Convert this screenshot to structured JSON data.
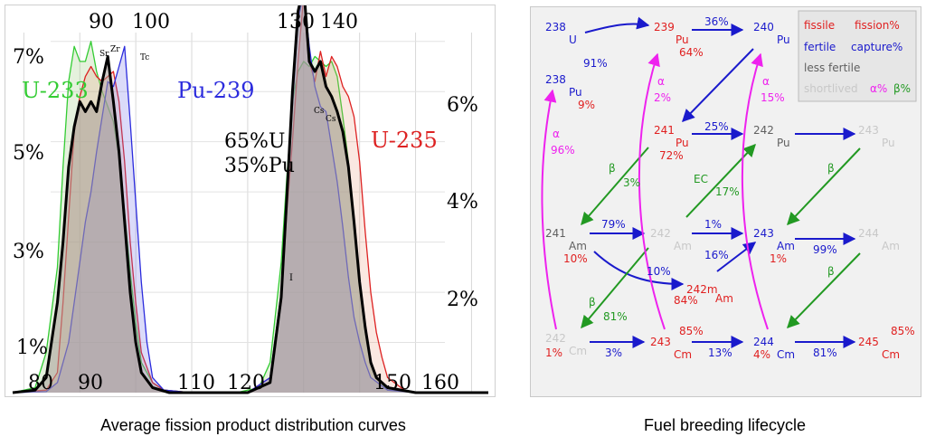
{
  "captions": {
    "left": "Average fission product distribution curves",
    "right": "Fuel breeding lifecycle"
  },
  "colors": {
    "u233": "#33cc33",
    "u235": "#dd2222",
    "pu239": "#2b2bdd",
    "avg": "#000000",
    "fill": "#a89c98",
    "fissile": "#e02020",
    "fertile": "#1a1acc",
    "less_fertile": "#606060",
    "shortlived": "#c8c8c8",
    "alpha": "#ee22ee",
    "beta": "#229922"
  },
  "chart_data": {
    "type": "area",
    "top_ticks": [
      "90",
      "100",
      "130",
      "140"
    ],
    "bottom_ticks": [
      "80",
      "90",
      "110",
      "120",
      "150",
      "160"
    ],
    "left_ticks": [
      "7%",
      "5%",
      "3%",
      "1%"
    ],
    "right_ticks": [
      "6%",
      "4%",
      "2%"
    ],
    "series_labels": [
      "U-233",
      "Pu-239",
      "U-235"
    ],
    "mix_label": [
      "65%U",
      "35%Pu"
    ],
    "element_labels": [
      "Sr",
      "Zr",
      "Tc",
      "Cs",
      "Cs",
      "I"
    ],
    "xlim": [
      78,
      163
    ],
    "ylim": [
      0,
      7.5
    ],
    "series": [
      {
        "name": "U-233",
        "points": [
          [
            78,
            0
          ],
          [
            82,
            0.1
          ],
          [
            84,
            0.8
          ],
          [
            86,
            2.5
          ],
          [
            87,
            4.5
          ],
          [
            88,
            6.2
          ],
          [
            89,
            6.9
          ],
          [
            90,
            6.6
          ],
          [
            91,
            6.6
          ],
          [
            92,
            7.0
          ],
          [
            93,
            6.4
          ],
          [
            94,
            6.0
          ],
          [
            95,
            5.7
          ],
          [
            96,
            5.4
          ],
          [
            97,
            4.7
          ],
          [
            98,
            3.6
          ],
          [
            99,
            2.4
          ],
          [
            100,
            1.4
          ],
          [
            101,
            0.6
          ],
          [
            103,
            0.2
          ],
          [
            105,
            0.05
          ],
          [
            110,
            0
          ],
          [
            118,
            0
          ],
          [
            122,
            0.1
          ],
          [
            124,
            0.6
          ],
          [
            126,
            2.6
          ],
          [
            127,
            4.3
          ],
          [
            128,
            5.8
          ],
          [
            129,
            6.4
          ],
          [
            130,
            6.6
          ],
          [
            131,
            6.5
          ],
          [
            132,
            6.7
          ],
          [
            133,
            6.6
          ],
          [
            134,
            6.5
          ],
          [
            135,
            6.6
          ],
          [
            136,
            6.3
          ],
          [
            137,
            5.5
          ],
          [
            138,
            4.6
          ],
          [
            139,
            3.3
          ],
          [
            140,
            2.1
          ],
          [
            141,
            1.2
          ],
          [
            142,
            0.6
          ],
          [
            143,
            0.3
          ],
          [
            145,
            0.05
          ],
          [
            150,
            0
          ],
          [
            163,
            0
          ]
        ]
      },
      {
        "name": "U-235",
        "points": [
          [
            78,
            0
          ],
          [
            84,
            0.05
          ],
          [
            86,
            0.4
          ],
          [
            87,
            1.8
          ],
          [
            88,
            3.5
          ],
          [
            89,
            5.2
          ],
          [
            90,
            5.9
          ],
          [
            91,
            6.3
          ],
          [
            92,
            6.5
          ],
          [
            93,
            6.3
          ],
          [
            94,
            6.2
          ],
          [
            95,
            6.3
          ],
          [
            96,
            6.4
          ],
          [
            97,
            5.8
          ],
          [
            98,
            4.6
          ],
          [
            99,
            3.0
          ],
          [
            100,
            1.8
          ],
          [
            101,
            0.8
          ],
          [
            103,
            0.2
          ],
          [
            105,
            0.05
          ],
          [
            110,
            0
          ],
          [
            120,
            0
          ],
          [
            124,
            0.3
          ],
          [
            126,
            1.8
          ],
          [
            127,
            3.6
          ],
          [
            128,
            5.0
          ],
          [
            129,
            6.6
          ],
          [
            130,
            7.9
          ],
          [
            131,
            6.6
          ],
          [
            132,
            6.2
          ],
          [
            133,
            6.8
          ],
          [
            134,
            6.3
          ],
          [
            135,
            6.7
          ],
          [
            136,
            6.5
          ],
          [
            137,
            6.1
          ],
          [
            138,
            5.9
          ],
          [
            139,
            5.5
          ],
          [
            140,
            4.6
          ],
          [
            141,
            3.2
          ],
          [
            142,
            2.0
          ],
          [
            143,
            1.2
          ],
          [
            144,
            0.7
          ],
          [
            145,
            0.3
          ],
          [
            148,
            0.05
          ],
          [
            150,
            0
          ],
          [
            163,
            0
          ]
        ]
      },
      {
        "name": "Pu-239",
        "points": [
          [
            78,
            0
          ],
          [
            84,
            0.02
          ],
          [
            86,
            0.2
          ],
          [
            88,
            1.0
          ],
          [
            89,
            1.8
          ],
          [
            90,
            2.6
          ],
          [
            91,
            3.4
          ],
          [
            92,
            4.0
          ],
          [
            93,
            4.8
          ],
          [
            94,
            5.5
          ],
          [
            95,
            6.2
          ],
          [
            96,
            6.1
          ],
          [
            97,
            6.5
          ],
          [
            98,
            6.9
          ],
          [
            99,
            5.4
          ],
          [
            100,
            3.8
          ],
          [
            101,
            2.2
          ],
          [
            102,
            1.0
          ],
          [
            103,
            0.3
          ],
          [
            105,
            0.05
          ],
          [
            110,
            0
          ],
          [
            120,
            0
          ],
          [
            124,
            0.3
          ],
          [
            126,
            2.0
          ],
          [
            127,
            3.8
          ],
          [
            128,
            5.7
          ],
          [
            129,
            7.4
          ],
          [
            130,
            8.0
          ],
          [
            131,
            6.9
          ],
          [
            132,
            6.1
          ],
          [
            133,
            5.7
          ],
          [
            134,
            5.6
          ],
          [
            135,
            4.9
          ],
          [
            136,
            4.2
          ],
          [
            137,
            3.3
          ],
          [
            138,
            2.3
          ],
          [
            139,
            1.5
          ],
          [
            140,
            1.0
          ],
          [
            141,
            0.6
          ],
          [
            142,
            0.3
          ],
          [
            145,
            0.05
          ],
          [
            150,
            0
          ],
          [
            163,
            0
          ]
        ]
      },
      {
        "name": "Average",
        "points": [
          [
            78,
            0
          ],
          [
            82,
            0.05
          ],
          [
            84,
            0.3
          ],
          [
            86,
            1.8
          ],
          [
            87,
            3.0
          ],
          [
            88,
            4.5
          ],
          [
            89,
            5.3
          ],
          [
            90,
            5.8
          ],
          [
            91,
            5.6
          ],
          [
            92,
            5.8
          ],
          [
            93,
            5.6
          ],
          [
            94,
            6.2
          ],
          [
            95,
            6.7
          ],
          [
            96,
            5.8
          ],
          [
            97,
            4.8
          ],
          [
            98,
            3.4
          ],
          [
            99,
            2.0
          ],
          [
            100,
            1.0
          ],
          [
            101,
            0.4
          ],
          [
            103,
            0.1
          ],
          [
            106,
            0
          ],
          [
            120,
            0
          ],
          [
            124,
            0.2
          ],
          [
            126,
            1.9
          ],
          [
            127,
            3.9
          ],
          [
            128,
            6.0
          ],
          [
            129,
            7.6
          ],
          [
            130,
            8.1
          ],
          [
            131,
            6.6
          ],
          [
            132,
            6.4
          ],
          [
            133,
            6.6
          ],
          [
            134,
            6.1
          ],
          [
            135,
            5.9
          ],
          [
            136,
            5.6
          ],
          [
            137,
            5.2
          ],
          [
            138,
            4.5
          ],
          [
            139,
            3.4
          ],
          [
            140,
            2.2
          ],
          [
            141,
            1.3
          ],
          [
            142,
            0.6
          ],
          [
            143,
            0.3
          ],
          [
            145,
            0.1
          ],
          [
            150,
            0
          ],
          [
            163,
            0
          ]
        ]
      }
    ]
  },
  "lifecycle": {
    "legend": {
      "fissile": "fissile",
      "fission_pct": "fission%",
      "fertile": "fertile",
      "capture_pct": "capture%",
      "less_fertile": "less fertile",
      "shortlived": "shortlived",
      "alpha_pct": "α%",
      "beta_pct": "β%"
    },
    "nuclides": {
      "u238_mass": "238",
      "u238_el": "U",
      "pu239_mass": "239",
      "pu239_el": "Pu",
      "pu240_mass": "240",
      "pu240_el": "Pu",
      "pu238_mass": "238",
      "pu238_el": "Pu",
      "pu241_mass": "241",
      "pu241_el": "Pu",
      "pu242_mass": "242",
      "pu242_el": "Pu",
      "pu243_mass": "243",
      "pu243_el": "Pu",
      "am241_mass": "241",
      "am241_el": "Am",
      "am242_mass": "242",
      "am242_el": "Am",
      "am243_mass": "243",
      "am243_el": "Am",
      "am244_mass": "244",
      "am244_el": "Am",
      "am242m_mass": "242m",
      "am242m_el": "Am",
      "cm242_mass": "242",
      "cm242_el": "Cm",
      "cm243_mass": "243",
      "cm243_el": "Cm",
      "cm244_mass": "244",
      "cm244_el": "Cm",
      "cm245_mass": "245",
      "cm245_el": "Cm"
    },
    "percents": {
      "u238_capture": "91%",
      "pu239_fission": "64%",
      "pu239_pu240": "36%",
      "pu238_fission": "9%",
      "pu238_alpha": "α",
      "pu238_alpha_pct": "96%",
      "pu240_alpha": "α",
      "pu240_alpha_pct": "2%",
      "cm244_alpha": "α",
      "cm244_alpha_pct": "15%",
      "pu241_fission": "72%",
      "pu241_capture": "25%",
      "pu241_beta": "β",
      "pu241_beta_pct": "3%",
      "am242_ec": "EC",
      "am242_ec_pct": "17%",
      "pu243_beta": "β",
      "am244_beta": "β",
      "am241_fission": "10%",
      "am241_capture": "79%",
      "am241_to_am242m": "10%",
      "am242_capture": "1%",
      "am242m_capture": "16%",
      "am242m_fission": "84%",
      "am243_fission": "1%",
      "am243_capture": "99%",
      "am242_beta": "β",
      "am242_beta_pct": "81%",
      "cm242_fission": "1%",
      "cm242_capture": "3%",
      "cm243_fission": "85%",
      "cm243_capture": "13%",
      "cm244_fission": "4%",
      "cm244_capture": "81%",
      "cm245_fission": "85%"
    }
  }
}
